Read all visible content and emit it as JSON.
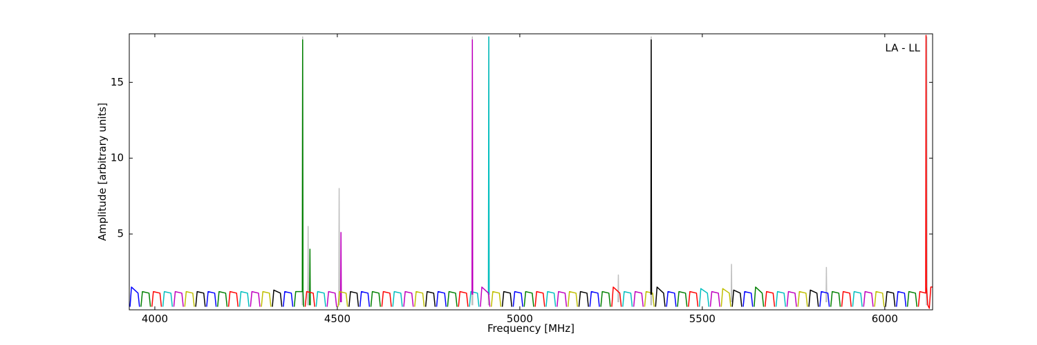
{
  "chart_data": {
    "type": "line",
    "xlabel": "Frequency [MHz]",
    "ylabel": "Amplitude [arbitrary units]",
    "annotation": "LA - LL",
    "xlim": [
      3930,
      6131
    ],
    "ylim": [
      0,
      18.2
    ],
    "xticks": [
      4000,
      4500,
      5000,
      5500,
      6000
    ],
    "yticks": [
      5,
      10,
      15
    ],
    "series": [
      {
        "color": "#bfbfbf",
        "x": [
          4404,
          4405,
          4406,
          4407,
          4419,
          4420,
          4421,
          4422,
          4504,
          4505,
          4506,
          4507,
          4869,
          4870,
          4871,
          4872,
          4914,
          4915,
          4916,
          4917,
          5269,
          5270,
          5271,
          5272,
          5359,
          5360,
          5361,
          5362,
          5579,
          5580,
          5581,
          5582,
          5839,
          5840,
          5841,
          5842,
          6114,
          6115,
          6116
        ],
        "values": [
          0.3,
          18.0,
          0.3,
          null,
          0.3,
          5.5,
          0.3,
          null,
          0.3,
          8.0,
          0.3,
          null,
          0.3,
          18.0,
          0.3,
          null,
          0.3,
          18.0,
          0.3,
          null,
          0.5,
          2.3,
          0.5,
          null,
          0.3,
          18.0,
          0.3,
          null,
          0.5,
          3.0,
          0.5,
          null,
          0.5,
          2.8,
          0.5,
          null,
          0.3,
          18.0,
          0.3
        ]
      },
      {
        "color": "#0000ff",
        "x": [
          3932,
          3936,
          3954,
          3958,
          3960,
          4142,
          4146,
          4164,
          4168,
          4170,
          4352,
          4356,
          4374,
          4378,
          4380,
          4562,
          4566,
          4584,
          4588,
          4590,
          4772,
          4776,
          4794,
          4798,
          4800,
          4982,
          4986,
          5004,
          5008,
          5010,
          5192,
          5196,
          5214,
          5218,
          5220,
          5402,
          5406,
          5424,
          5428,
          5430,
          5612,
          5616,
          5634,
          5638,
          5640,
          5822,
          5826,
          5844,
          5848,
          5850,
          6032,
          6036,
          6054,
          6058
        ],
        "values": [
          0.2,
          1.5,
          1.1,
          0.2,
          null,
          0.2,
          1.2,
          1.1,
          0.2,
          null,
          0.2,
          1.2,
          1.1,
          0.2,
          null,
          0.2,
          1.2,
          1.1,
          0.2,
          null,
          0.2,
          1.2,
          1.1,
          0.2,
          null,
          0.2,
          1.2,
          1.1,
          0.2,
          null,
          0.2,
          1.2,
          1.1,
          0.2,
          null,
          0.2,
          1.2,
          1.1,
          0.2,
          null,
          0.2,
          1.2,
          1.1,
          0.2,
          null,
          0.2,
          1.2,
          1.1,
          0.2,
          null,
          0.2,
          1.2,
          1.1,
          0.2
        ]
      },
      {
        "color": "#008000",
        "x": [
          3962,
          3966,
          3984,
          3988,
          3990,
          4172,
          4176,
          4194,
          4198,
          4200,
          4382,
          4386,
          4404,
          4405,
          4406,
          4408,
          4410,
          4424,
          4425,
          4426,
          4427,
          4592,
          4596,
          4614,
          4618,
          4620,
          4802,
          4806,
          4824,
          4828,
          4830,
          5012,
          5016,
          5034,
          5038,
          5040,
          5222,
          5226,
          5244,
          5248,
          5250,
          5432,
          5436,
          5454,
          5458,
          5460,
          5642,
          5646,
          5664,
          5668,
          5670,
          5852,
          5856,
          5874,
          5878,
          5880,
          6062,
          6066,
          6084,
          6088
        ],
        "values": [
          0.2,
          1.2,
          1.1,
          0.2,
          null,
          0.2,
          1.2,
          1.1,
          0.2,
          null,
          0.2,
          1.2,
          1.2,
          17.8,
          1.2,
          0.2,
          null,
          0.3,
          4.0,
          0.3,
          null,
          0.2,
          1.2,
          1.1,
          0.2,
          null,
          0.2,
          1.2,
          1.1,
          0.2,
          null,
          0.2,
          1.2,
          1.1,
          0.2,
          null,
          0.2,
          1.2,
          1.1,
          0.2,
          null,
          0.2,
          1.2,
          1.1,
          0.2,
          null,
          0.2,
          1.5,
          1.1,
          0.2,
          null,
          0.2,
          1.2,
          1.1,
          0.2,
          null,
          0.2,
          1.2,
          1.1,
          0.2
        ]
      },
      {
        "color": "#ff0000",
        "x": [
          3992,
          3996,
          4014,
          4018,
          4020,
          4202,
          4206,
          4224,
          4228,
          4230,
          4412,
          4416,
          4434,
          4438,
          4440,
          4622,
          4626,
          4644,
          4648,
          4650,
          4832,
          4836,
          4854,
          4858,
          4860,
          5042,
          5046,
          5064,
          5068,
          5070,
          5252,
          5256,
          5274,
          5278,
          5280,
          5462,
          5466,
          5484,
          5488,
          5490,
          5672,
          5676,
          5694,
          5698,
          5700,
          5882,
          5886,
          5904,
          5908,
          5910,
          6092,
          6096,
          6112,
          6113,
          6114,
          6118,
          6122,
          6126,
          6131
        ],
        "values": [
          0.2,
          1.2,
          1.1,
          0.2,
          null,
          0.2,
          1.2,
          1.1,
          0.2,
          null,
          0.2,
          1.2,
          1.1,
          0.2,
          null,
          0.2,
          1.2,
          1.1,
          0.2,
          null,
          0.2,
          1.2,
          1.1,
          0.2,
          null,
          0.2,
          1.2,
          1.1,
          0.2,
          null,
          0.2,
          1.5,
          1.1,
          0.2,
          null,
          0.2,
          1.2,
          1.1,
          0.2,
          null,
          0.2,
          1.2,
          1.1,
          0.2,
          null,
          0.2,
          1.2,
          1.1,
          0.2,
          null,
          0.2,
          1.2,
          1.1,
          18.1,
          1.5,
          0.3,
          0.1,
          1.5,
          1.5
        ]
      },
      {
        "color": "#00bfbf",
        "x": [
          4022,
          4026,
          4044,
          4048,
          4050,
          4232,
          4236,
          4254,
          4258,
          4260,
          4442,
          4446,
          4464,
          4468,
          4470,
          4652,
          4656,
          4674,
          4678,
          4680,
          4862,
          4866,
          4884,
          4888,
          4890,
          4914,
          4915,
          4916,
          4917,
          5072,
          5076,
          5094,
          5098,
          5100,
          5282,
          5286,
          5304,
          5308,
          5310,
          5492,
          5496,
          5514,
          5518,
          5520,
          5702,
          5706,
          5724,
          5728,
          5730,
          5912,
          5916,
          5934,
          5938
        ],
        "values": [
          0.2,
          1.2,
          1.1,
          0.2,
          null,
          0.2,
          1.2,
          1.1,
          0.2,
          null,
          0.2,
          1.2,
          1.1,
          0.2,
          null,
          0.2,
          1.2,
          1.1,
          0.2,
          null,
          0.2,
          1.2,
          1.1,
          0.2,
          null,
          1.0,
          18.0,
          1.0,
          null,
          0.2,
          1.2,
          1.1,
          0.2,
          null,
          0.2,
          1.2,
          1.1,
          0.2,
          null,
          0.2,
          1.4,
          1.1,
          0.2,
          null,
          0.2,
          1.2,
          1.1,
          0.2,
          null,
          0.2,
          1.2,
          1.1,
          0.2
        ]
      },
      {
        "color": "#bf00bf",
        "x": [
          4052,
          4056,
          4074,
          4078,
          4080,
          4262,
          4266,
          4284,
          4288,
          4290,
          4472,
          4476,
          4494,
          4498,
          4500,
          4509,
          4510,
          4511,
          4512,
          4682,
          4686,
          4704,
          4708,
          4710,
          4869,
          4870,
          4871,
          4872,
          4892,
          4896,
          4914,
          4918,
          4920,
          5102,
          5106,
          5124,
          5128,
          5130,
          5312,
          5316,
          5334,
          5338,
          5340,
          5522,
          5526,
          5544,
          5548,
          5550,
          5732,
          5736,
          5754,
          5758,
          5760,
          5942,
          5946,
          5964,
          5968
        ],
        "values": [
          0.2,
          1.2,
          1.1,
          0.2,
          null,
          0.2,
          1.2,
          1.1,
          0.2,
          null,
          0.2,
          1.2,
          1.1,
          0.2,
          null,
          0.5,
          5.1,
          0.5,
          null,
          0.2,
          1.2,
          1.1,
          0.2,
          null,
          1.0,
          17.8,
          1.0,
          null,
          0.2,
          1.5,
          1.1,
          0.2,
          null,
          0.2,
          1.2,
          1.1,
          0.2,
          null,
          0.2,
          1.2,
          1.1,
          0.2,
          null,
          0.2,
          1.2,
          1.1,
          0.2,
          null,
          0.2,
          1.2,
          1.1,
          0.2,
          null,
          0.2,
          1.2,
          1.1,
          0.2
        ]
      },
      {
        "color": "#bfbf00",
        "x": [
          4082,
          4086,
          4104,
          4108,
          4110,
          4292,
          4296,
          4314,
          4318,
          4320,
          4502,
          4506,
          4524,
          4528,
          4530,
          4712,
          4716,
          4734,
          4738,
          4740,
          4922,
          4926,
          4944,
          4948,
          4950,
          5132,
          5136,
          5154,
          5158,
          5160,
          5342,
          5346,
          5364,
          5368,
          5370,
          5552,
          5556,
          5574,
          5578,
          5580,
          5762,
          5766,
          5784,
          5788,
          5790,
          5972,
          5976,
          5994,
          5998
        ],
        "values": [
          0.2,
          1.2,
          1.1,
          0.2,
          null,
          0.2,
          1.2,
          1.1,
          0.2,
          null,
          0.2,
          1.2,
          1.1,
          0.2,
          null,
          0.2,
          1.2,
          1.1,
          0.2,
          null,
          0.2,
          1.2,
          1.1,
          0.2,
          null,
          0.2,
          1.2,
          1.1,
          0.2,
          null,
          0.2,
          1.2,
          1.1,
          0.2,
          null,
          0.2,
          1.4,
          1.1,
          0.2,
          null,
          0.2,
          1.2,
          1.1,
          0.2,
          null,
          0.2,
          1.2,
          1.1,
          0.2
        ]
      },
      {
        "color": "#000000",
        "x": [
          4112,
          4116,
          4134,
          4138,
          4140,
          4322,
          4326,
          4344,
          4348,
          4350,
          4532,
          4536,
          4554,
          4558,
          4560,
          4742,
          4746,
          4764,
          4768,
          4770,
          4952,
          4956,
          4974,
          4978,
          4980,
          5162,
          5166,
          5184,
          5188,
          5190,
          5359,
          5360,
          5361,
          5362,
          5372,
          5376,
          5394,
          5398,
          5400,
          5582,
          5586,
          5604,
          5608,
          5610,
          5792,
          5796,
          5814,
          5818,
          5820,
          6002,
          6006,
          6024,
          6028
        ],
        "values": [
          0.2,
          1.2,
          1.1,
          0.2,
          null,
          0.2,
          1.3,
          1.1,
          0.2,
          null,
          0.2,
          1.2,
          1.1,
          0.2,
          null,
          0.2,
          1.2,
          1.1,
          0.2,
          null,
          0.2,
          1.2,
          1.1,
          0.2,
          null,
          0.2,
          1.2,
          1.1,
          0.2,
          null,
          1.0,
          17.8,
          1.0,
          null,
          0.2,
          1.5,
          1.1,
          0.2,
          null,
          0.2,
          1.3,
          1.1,
          0.2,
          null,
          0.2,
          1.3,
          1.1,
          0.2,
          null,
          0.2,
          1.2,
          1.1,
          0.2
        ]
      }
    ]
  }
}
